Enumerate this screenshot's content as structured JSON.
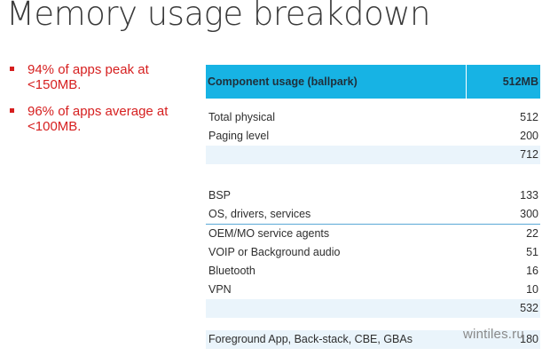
{
  "title": "Memory usage breakdown",
  "bullets": [
    "94% of apps peak at <150MB.",
    "96% of apps average at <100MB."
  ],
  "table": {
    "header": {
      "label": "Component usage (ballpark)",
      "value": "512MB"
    },
    "group1": [
      {
        "label": "Total physical",
        "value": "512"
      },
      {
        "label": "Paging level",
        "value": "200"
      },
      {
        "label": "",
        "value": "712"
      }
    ],
    "group2": [
      {
        "label": "BSP",
        "value": "133"
      },
      {
        "label": "OS, drivers, services",
        "value": "300"
      },
      {
        "label": "OEM/MO service agents",
        "value": "22"
      },
      {
        "label": "VOIP or Background audio",
        "value": "51"
      },
      {
        "label": "Bluetooth",
        "value": "16"
      },
      {
        "label": "VPN",
        "value": "10"
      },
      {
        "label": "",
        "value": "532"
      }
    ],
    "group3": [
      {
        "label": "Foreground App, Back-stack, CBE, GBAs",
        "value": "180"
      }
    ]
  },
  "watermark": "wintiles.ru"
}
